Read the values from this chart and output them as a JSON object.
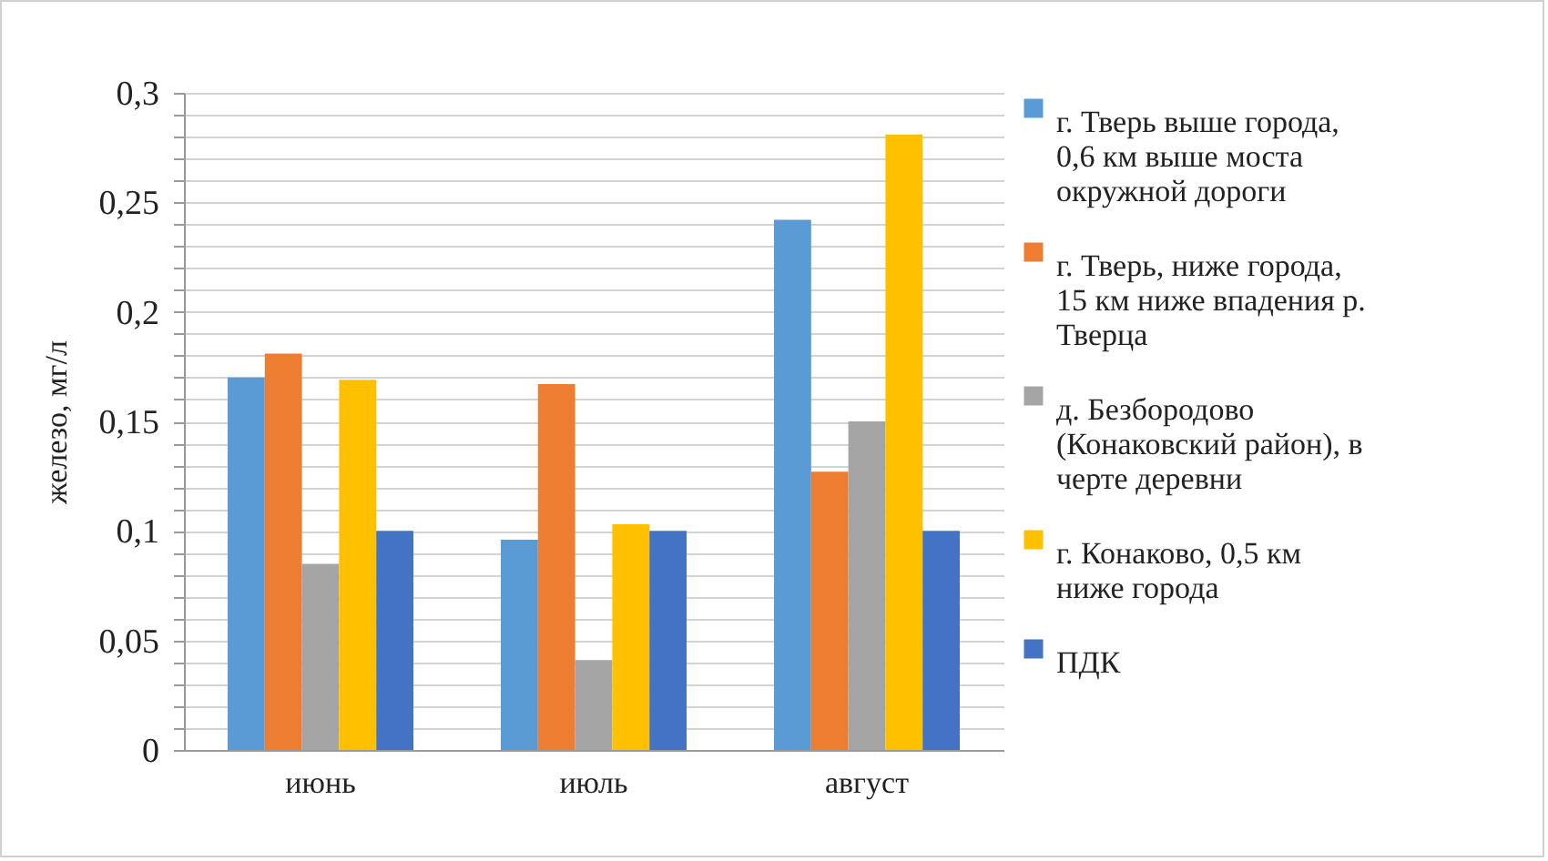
{
  "chart_data": {
    "type": "bar",
    "ylabel": "железо, мг/л",
    "categories": [
      "июнь",
      "июль",
      "август"
    ],
    "series": [
      {
        "name": "г. Тверь выше города, 0,6 км выше моста окружной дороги",
        "color": "#5b9bd5",
        "values": [
          0.17,
          0.096,
          0.242
        ]
      },
      {
        "name": "г.  Тверь, ниже города, 15 км ниже впадения р. Тверца",
        "color": "#ed7d31",
        "values": [
          0.181,
          0.167,
          0.127
        ]
      },
      {
        "name": "д. Безбородово (Конаковский район), в черте деревни",
        "color": "#a5a5a5",
        "values": [
          0.085,
          0.041,
          0.15
        ]
      },
      {
        "name": "г. Конаково, 0,5 км ниже города",
        "color": "#ffc000",
        "values": [
          0.169,
          0.103,
          0.281
        ]
      },
      {
        "name": "ПДК",
        "color": "#4472c4",
        "values": [
          0.1,
          0.1,
          0.1
        ]
      }
    ],
    "ylim": [
      0,
      0.3
    ],
    "yticks": [
      0,
      {
        "value": 0.01,
        "label": null
      },
      {
        "value": 0.02,
        "label": null
      },
      {
        "value": 0.03,
        "label": null
      },
      {
        "value": 0.04,
        "label": null
      },
      {
        "value": 0.05,
        "label": "0,05"
      },
      {
        "value": 0.06,
        "label": null
      },
      {
        "value": 0.07,
        "label": null
      },
      {
        "value": 0.08,
        "label": null
      },
      {
        "value": 0.09,
        "label": null
      },
      {
        "value": 0.1,
        "label": "0,1"
      },
      {
        "value": 0.11,
        "label": null
      },
      {
        "value": 0.12,
        "label": null
      },
      {
        "value": 0.13,
        "label": null
      },
      {
        "value": 0.14,
        "label": null
      },
      {
        "value": 0.15,
        "label": "0,15"
      },
      {
        "value": 0.16,
        "label": null
      },
      {
        "value": 0.17,
        "label": null
      },
      {
        "value": 0.18,
        "label": null
      },
      {
        "value": 0.19,
        "label": null
      },
      {
        "value": 0.2,
        "label": "0,2"
      },
      {
        "value": 0.21,
        "label": null
      },
      {
        "value": 0.22,
        "label": null
      },
      {
        "value": 0.23,
        "label": null
      },
      {
        "value": 0.24,
        "label": null
      },
      {
        "value": 0.25,
        "label": "0,25"
      },
      {
        "value": 0.26,
        "label": null
      },
      {
        "value": 0.27,
        "label": null
      },
      {
        "value": 0.28,
        "label": null
      },
      {
        "value": 0.29,
        "label": null
      },
      {
        "value": 0.3,
        "label": "0,3"
      }
    ],
    "grid": true,
    "legend": "right"
  }
}
